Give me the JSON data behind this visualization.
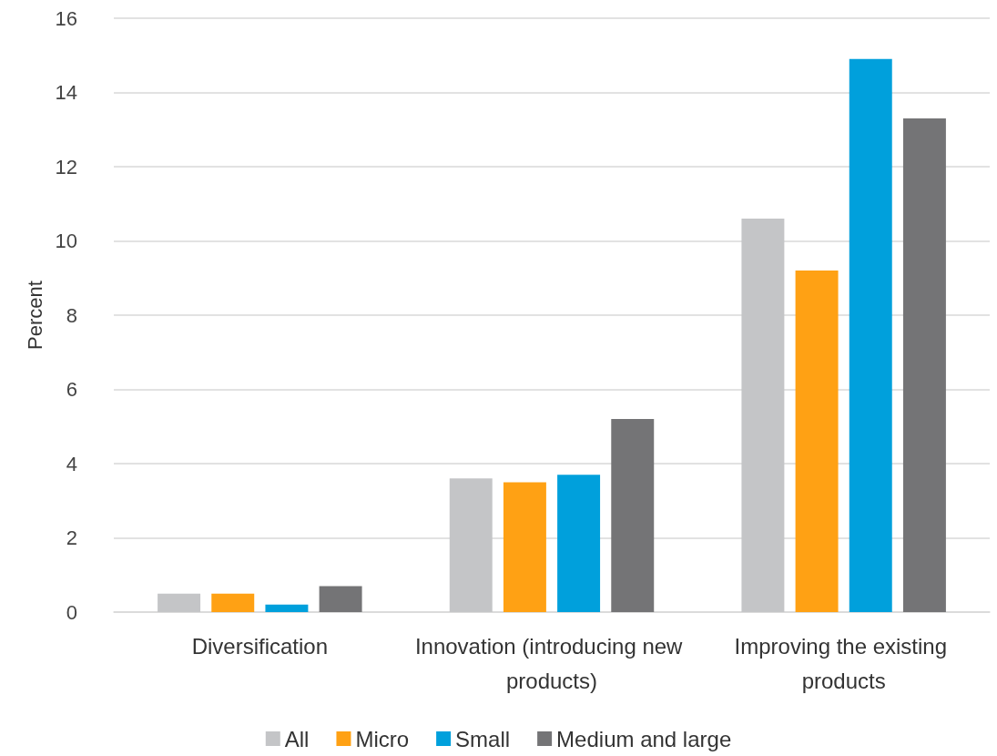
{
  "chart_data": {
    "type": "bar",
    "ylabel": "Percent",
    "categories": [
      "Diversification",
      "Innovation (introducing new products)",
      "Improving the existing products"
    ],
    "series": [
      {
        "name": "All",
        "color": "#c4c5c7",
        "values": [
          0.5,
          3.6,
          10.6
        ]
      },
      {
        "name": "Micro",
        "color": "#ffa114",
        "values": [
          0.5,
          3.5,
          9.2
        ]
      },
      {
        "name": "Small",
        "color": "#00a0dc",
        "values": [
          0.2,
          3.7,
          14.9
        ]
      },
      {
        "name": "Medium and large",
        "color": "#747476",
        "values": [
          0.7,
          5.2,
          13.3
        ]
      }
    ],
    "ylim": [
      0,
      16
    ],
    "yticks": [
      0,
      2,
      4,
      6,
      8,
      10,
      12,
      14,
      16
    ],
    "grid": "y",
    "legend": "bottom"
  }
}
